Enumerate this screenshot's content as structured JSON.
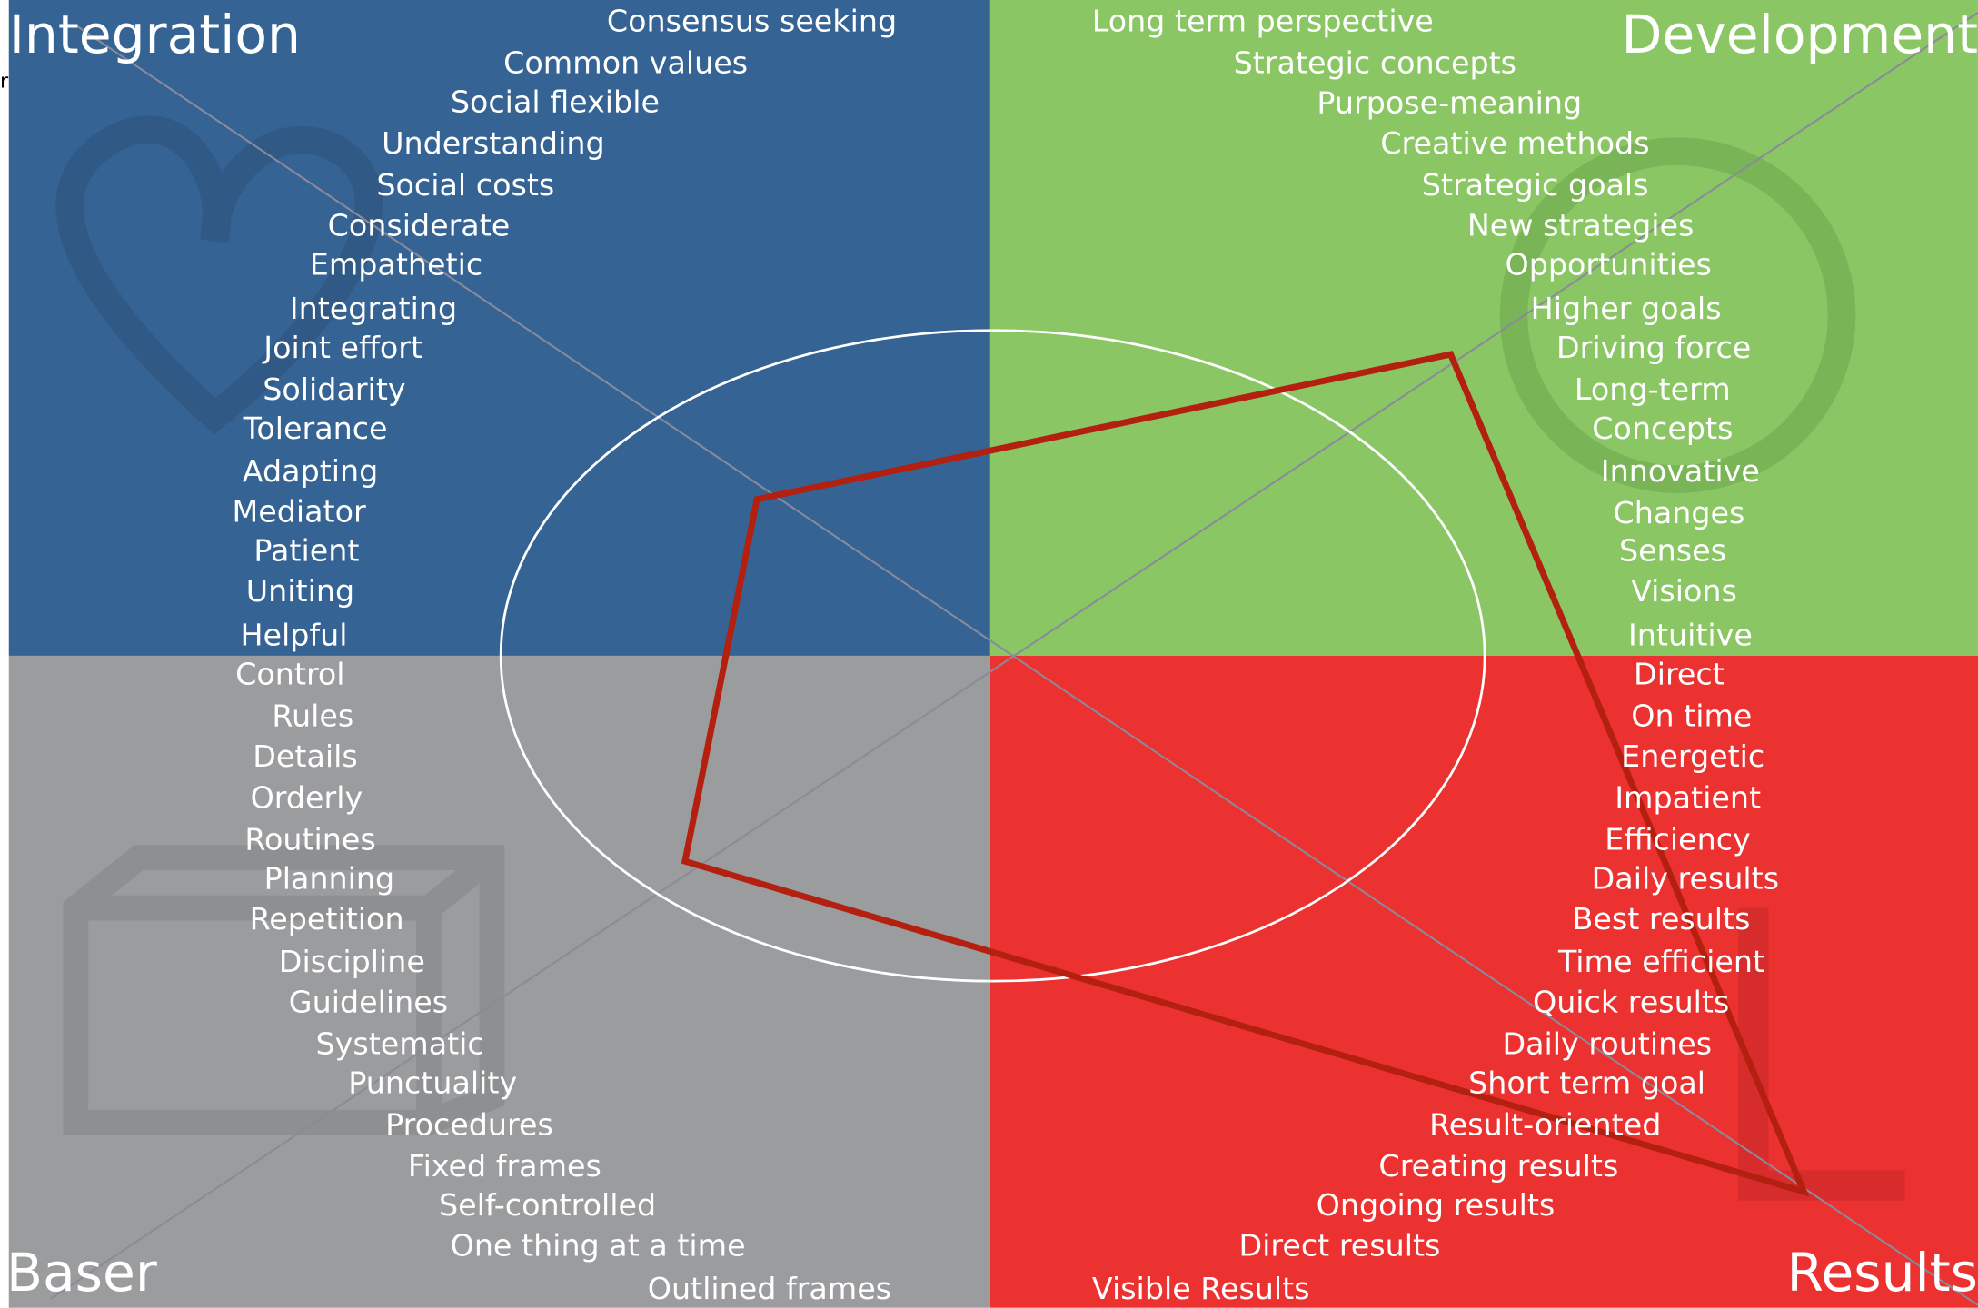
{
  "stray_text": "r",
  "quadrants": [
    {
      "title": "Integration",
      "items": [
        "Consensus seeking",
        "Common values",
        "Social flexible",
        "Understanding",
        "Social costs",
        "Considerate",
        "Empathetic",
        "Integrating",
        "Joint effort",
        "Solidarity",
        "Tolerance",
        "Adapting",
        "Mediator",
        "Patient",
        "Uniting",
        "Helpful"
      ]
    },
    {
      "title": "Development",
      "items": [
        "Long term perspective",
        "Strategic concepts",
        "Purpose-meaning",
        "Creative methods",
        "Strategic goals",
        "New strategies",
        "Opportunities",
        "Higher goals",
        "Driving force",
        "Long-term",
        "Concepts",
        "Innovative",
        "Changes",
        "Senses",
        "Visions",
        "Intuitive"
      ]
    },
    {
      "title": "Baser",
      "items": [
        "Control",
        "Rules",
        "Details",
        "Orderly",
        "Routines",
        "Planning",
        "Repetition",
        "Discipline",
        "Guidelines",
        "Systematic",
        "Punctuality",
        "Procedures",
        "Fixed frames",
        "Self-controlled",
        "One thing at a time",
        "Outlined frames"
      ]
    },
    {
      "title": "Results",
      "items": [
        "Direct",
        "On time",
        "Energetic",
        "Impatient",
        "Efficiency",
        "Daily results",
        "Best results",
        "Time efficient",
        "Quick results",
        "Daily routines",
        "Short term goal",
        "Result-oriented",
        "Creating results",
        "Ongoing results",
        "Direct results",
        "Visible Results"
      ]
    }
  ]
}
